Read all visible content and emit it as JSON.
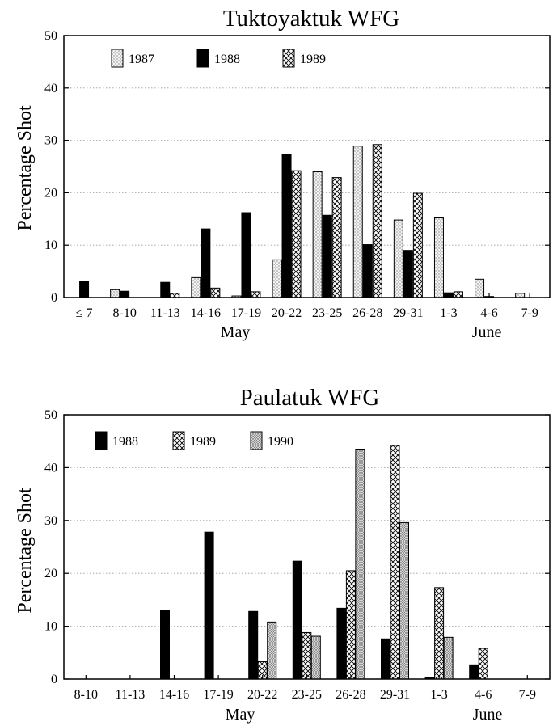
{
  "chart_data": [
    {
      "type": "bar",
      "title": "Tuktoyaktuk WFG",
      "ylabel": "Percentage Shot",
      "xlabel": "",
      "ylim": [
        0,
        50
      ],
      "yticks": [
        "0",
        "10",
        "20",
        "30",
        "40",
        "50"
      ],
      "grid": true,
      "legend_position": "top-left",
      "categories": [
        "≤ 7",
        "8-10",
        "11-13",
        "14-16",
        "17-19",
        "20-22",
        "23-25",
        "26-28",
        "29-31",
        "1-3",
        "4-6",
        "7-9"
      ],
      "month_labels": [
        "May",
        "June"
      ],
      "series": [
        {
          "name": "1987",
          "pattern": "dotted",
          "values": [
            0,
            1.5,
            0,
            3.8,
            0.3,
            7.2,
            24.0,
            28.9,
            14.8,
            15.2,
            3.5,
            0.8
          ]
        },
        {
          "name": "1988",
          "pattern": "solid",
          "values": [
            3.1,
            1.2,
            2.9,
            13.1,
            16.2,
            27.3,
            15.7,
            10.1,
            9.0,
            0.9,
            0.2,
            0
          ]
        },
        {
          "name": "1989",
          "pattern": "crosshatch",
          "values": [
            0,
            0,
            0.8,
            1.8,
            1.1,
            24.2,
            22.9,
            29.2,
            19.9,
            1.1,
            0,
            0
          ]
        }
      ]
    },
    {
      "type": "bar",
      "title": "Paulatuk WFG",
      "ylabel": "Percentage Shot",
      "xlabel": "",
      "ylim": [
        0,
        50
      ],
      "yticks": [
        "0",
        "10",
        "20",
        "30",
        "40",
        "50"
      ],
      "grid": true,
      "legend_position": "top-left",
      "categories": [
        "8-10",
        "11-13",
        "14-16",
        "17-19",
        "20-22",
        "23-25",
        "26-28",
        "29-31",
        "1-3",
        "4-6",
        "7-9"
      ],
      "month_labels": [
        "May",
        "June"
      ],
      "series": [
        {
          "name": "1988",
          "pattern": "solid",
          "values": [
            0,
            0,
            13.0,
            27.8,
            12.8,
            22.3,
            13.4,
            7.6,
            0.3,
            2.7,
            0
          ]
        },
        {
          "name": "1989",
          "pattern": "crosshatch",
          "values": [
            0,
            0,
            0,
            0,
            3.3,
            8.8,
            20.5,
            44.2,
            17.3,
            5.8,
            0
          ]
        },
        {
          "name": "1990",
          "pattern": "dotted-dense",
          "values": [
            0,
            0,
            0,
            0,
            10.8,
            8.1,
            43.5,
            29.6,
            7.9,
            0,
            0
          ]
        }
      ]
    }
  ]
}
